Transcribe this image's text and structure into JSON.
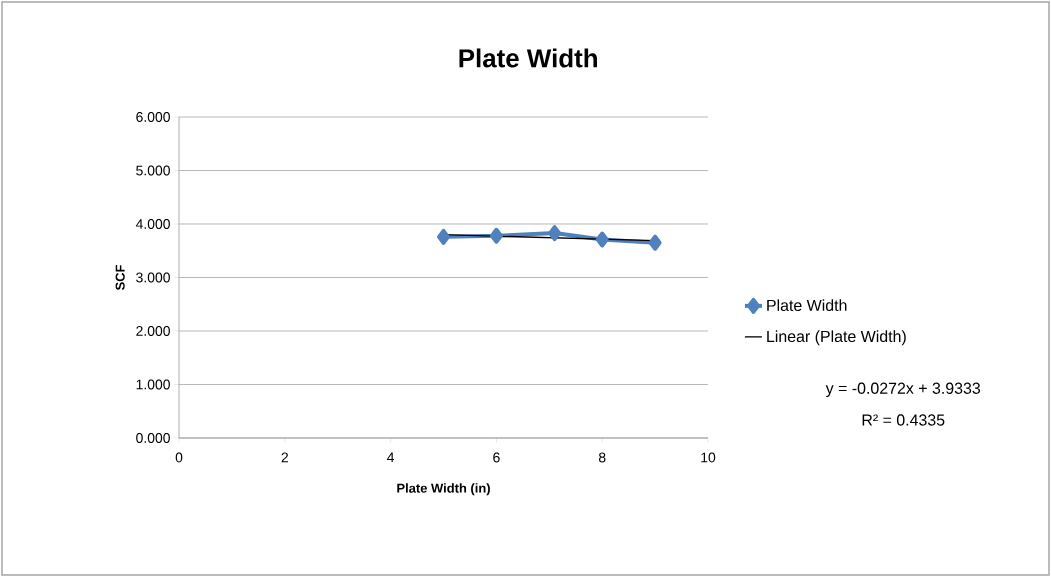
{
  "chart_data": {
    "type": "line",
    "title": "Plate Width",
    "xlabel": "Plate Width (in)",
    "ylabel": "SCF",
    "xlim": [
      0,
      10
    ],
    "xticks": [
      0,
      2,
      4,
      6,
      8,
      10
    ],
    "ylim": [
      0,
      6
    ],
    "yticks": [
      {
        "value": 0,
        "label": "0.000"
      },
      {
        "value": 1,
        "label": "1.000"
      },
      {
        "value": 2,
        "label": "2.000"
      },
      {
        "value": 3,
        "label": "3.000"
      },
      {
        "value": 4,
        "label": "4.000"
      },
      {
        "value": 5,
        "label": "5.000"
      },
      {
        "value": 6,
        "label": "6.000"
      }
    ],
    "series": [
      {
        "name": "Plate Width",
        "color": "#4f81bd",
        "x": [
          5,
          6,
          7.1,
          8,
          9
        ],
        "values": [
          3.76,
          3.78,
          3.83,
          3.71,
          3.65
        ],
        "marker": "diamond"
      },
      {
        "name": "Linear (Plate Width)",
        "color": "#000000",
        "x": [
          5,
          9
        ],
        "values": [
          3.8,
          3.69
        ],
        "marker": "none"
      }
    ],
    "annotations": [
      "y = -0.0272x + 3.9333",
      "R² = 0.4335"
    ],
    "grid": "y",
    "legend": "right"
  }
}
